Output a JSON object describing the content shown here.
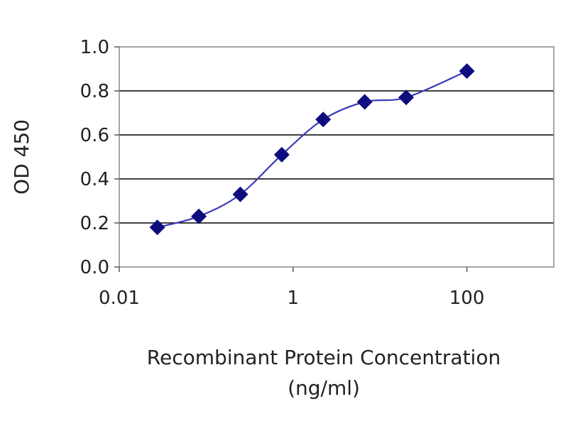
{
  "chart_data": {
    "type": "line",
    "title": "",
    "xlabel": "Recombinant Protein Concentration",
    "xlabel_unit": "(ng/ml)",
    "ylabel": "OD 450",
    "x_scale": "log",
    "xlim": [
      0.01,
      1000
    ],
    "ylim": [
      0.0,
      1.0
    ],
    "x_ticks": [
      "0.01",
      "1",
      "100"
    ],
    "y_ticks": [
      "0.0",
      "0.2",
      "0.4",
      "0.6",
      "0.8",
      "1.0"
    ],
    "grid": "horizontal",
    "legend": "none",
    "series": [
      {
        "x": [
          0.0274,
          0.0823,
          0.247,
          0.741,
          2.22,
          6.67,
          20.0,
          100.0
        ],
        "y": [
          0.18,
          0.23,
          0.33,
          0.51,
          0.67,
          0.75,
          0.77,
          0.89
        ],
        "marker": "diamond",
        "color": "#1a1a8c"
      }
    ],
    "colors": {
      "line": "#3b3bb5",
      "marker": "#0d0d80",
      "grid": "#000000",
      "frame": "#888888"
    }
  }
}
